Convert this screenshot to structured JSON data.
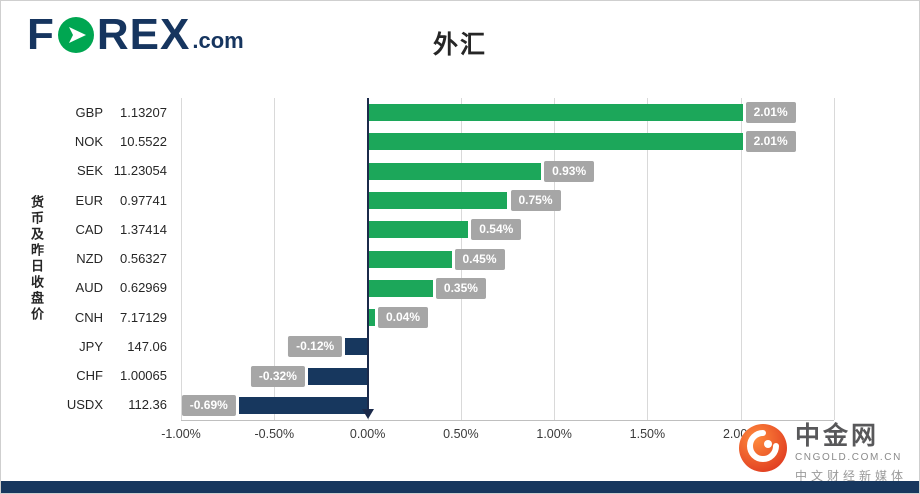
{
  "brand": {
    "f": "F",
    "rex": "REX",
    "dotcom": ".com",
    "o_color": "#00A651",
    "navy": "#16355F"
  },
  "title": "外汇",
  "y_axis_title": "货币及昨日收盘价",
  "chart_data": {
    "type": "bar",
    "orientation": "horizontal",
    "title": "外汇",
    "ylabel": "货币及昨日收盘价",
    "xlabel": "",
    "categories": [
      "GBP",
      "NOK",
      "SEK",
      "EUR",
      "CAD",
      "NZD",
      "AUD",
      "CNH",
      "JPY",
      "CHF",
      "USDX"
    ],
    "close_prices": [
      "1.13207",
      "10.5522",
      "11.23054",
      "0.97741",
      "1.37414",
      "0.56327",
      "0.62969",
      "7.17129",
      "147.06",
      "1.00065",
      "112.36"
    ],
    "values": [
      2.01,
      2.01,
      0.93,
      0.75,
      0.54,
      0.45,
      0.35,
      0.04,
      -0.12,
      -0.32,
      -0.69
    ],
    "data_labels": [
      "2.01%",
      "2.01%",
      "0.93%",
      "0.75%",
      "0.54%",
      "0.45%",
      "0.35%",
      "0.04%",
      "-0.12%",
      "-0.32%",
      "-0.69%"
    ],
    "x_tick_values": [
      -1.0,
      -0.5,
      0,
      0.5,
      1.0,
      1.5,
      2.0
    ],
    "x_tick_labels": [
      "-1.00%",
      "-0.50%",
      "0.00%",
      "0.50%",
      "1.00%",
      "1.50%",
      "2.00%"
    ],
    "xlim": [
      -1.0,
      2.5
    ],
    "grid": true,
    "legend": false,
    "positive_color": "#1CA75A",
    "negative_color": "#17375E",
    "label_bg_color": "#A6A6A6",
    "gridline_color": "#D9D9D9"
  },
  "watermark": {
    "name": "中金网",
    "domain": "CNGOLD.COM.CN",
    "tagline": "中文财经新媒体"
  }
}
